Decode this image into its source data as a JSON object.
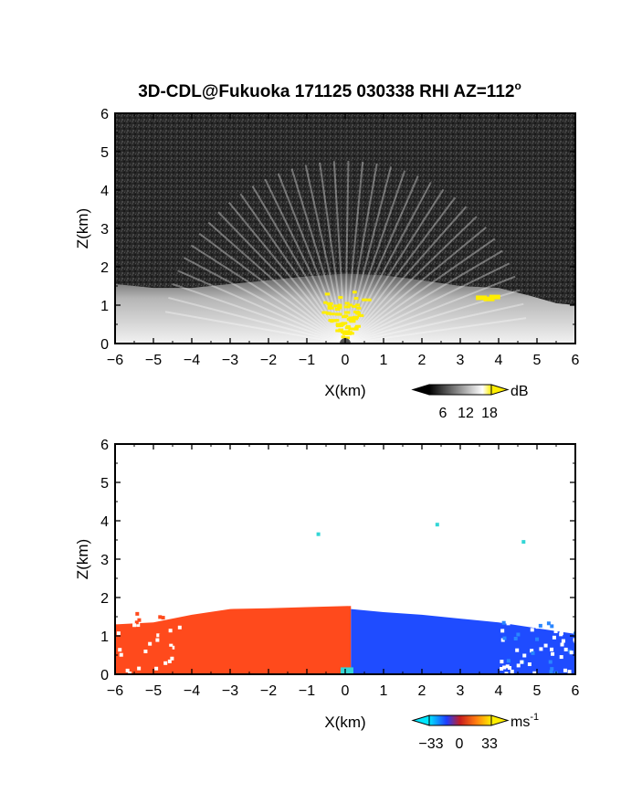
{
  "title": {
    "main": "3D-CDL@Fukuoka 171125 030338 RHI AZ=112",
    "degree_symbol": "o"
  },
  "colors": {
    "background": "#ffffff",
    "panel_dark": "#262626",
    "echo_light": "#e6e6e6",
    "echo_yellow": "#ffee00",
    "velocity_toward": "#ff4a1c",
    "velocity_away": "#1f4cff",
    "near_zero": "#33d6d6"
  },
  "chart_data": [
    {
      "type": "heatmap",
      "name": "reflectivity-rhi",
      "xlabel": "X(km)",
      "ylabel": "Z(km)",
      "xlim": [
        -6,
        6
      ],
      "ylim": [
        0,
        6
      ],
      "xticks": [
        "-6",
        "-5",
        "-4",
        "-3",
        "-2",
        "-1",
        "0",
        "1",
        "2",
        "3",
        "4",
        "5",
        "6"
      ],
      "yticks": [
        "0",
        "1",
        "2",
        "3",
        "4",
        "5",
        "6"
      ],
      "grid": false,
      "echo_top_km": [
        {
          "x": -6.0,
          "z": 1.55
        },
        {
          "x": -5.0,
          "z": 1.45
        },
        {
          "x": -4.0,
          "z": 1.45
        },
        {
          "x": -3.0,
          "z": 1.55
        },
        {
          "x": -2.0,
          "z": 1.65
        },
        {
          "x": -1.0,
          "z": 1.75
        },
        {
          "x": 0.0,
          "z": 1.82
        },
        {
          "x": 1.0,
          "z": 1.78
        },
        {
          "x": 2.0,
          "z": 1.65
        },
        {
          "x": 3.0,
          "z": 1.5
        },
        {
          "x": 4.0,
          "z": 1.45
        },
        {
          "x": 4.8,
          "z": 1.25
        },
        {
          "x": 5.5,
          "z": 1.05
        },
        {
          "x": 6.0,
          "z": 1.0
        }
      ],
      "strong_echo_cells": [
        {
          "x": 3.55,
          "z": 1.18
        },
        {
          "x": 3.75,
          "z": 1.15
        },
        {
          "x": 3.9,
          "z": 1.2
        }
      ],
      "colorbar": {
        "unit": "dB",
        "ticks": [
          "6",
          "12",
          "18"
        ],
        "range": [
          0,
          21
        ],
        "triangle_ends": true
      }
    },
    {
      "type": "heatmap",
      "name": "radial-velocity-rhi",
      "xlabel": "X(km)",
      "ylabel": "Z(km)",
      "xlim": [
        -6,
        6
      ],
      "ylim": [
        0,
        6
      ],
      "xticks": [
        "-6",
        "-5",
        "-4",
        "-3",
        "-2",
        "-1",
        "0",
        "1",
        "2",
        "3",
        "4",
        "5",
        "6"
      ],
      "yticks": [
        "0",
        "1",
        "2",
        "3",
        "4",
        "5",
        "6"
      ],
      "grid": false,
      "isolated_points_km": [
        {
          "x": -0.7,
          "z": 3.65
        },
        {
          "x": 2.4,
          "z": 3.9
        },
        {
          "x": 4.65,
          "z": 3.45
        }
      ],
      "colorbar": {
        "unit": "ms",
        "unit_exponent": "-1",
        "ticks": [
          "-33",
          "0",
          "33"
        ],
        "range": [
          -40,
          40
        ],
        "triangle_ends": true
      }
    }
  ]
}
